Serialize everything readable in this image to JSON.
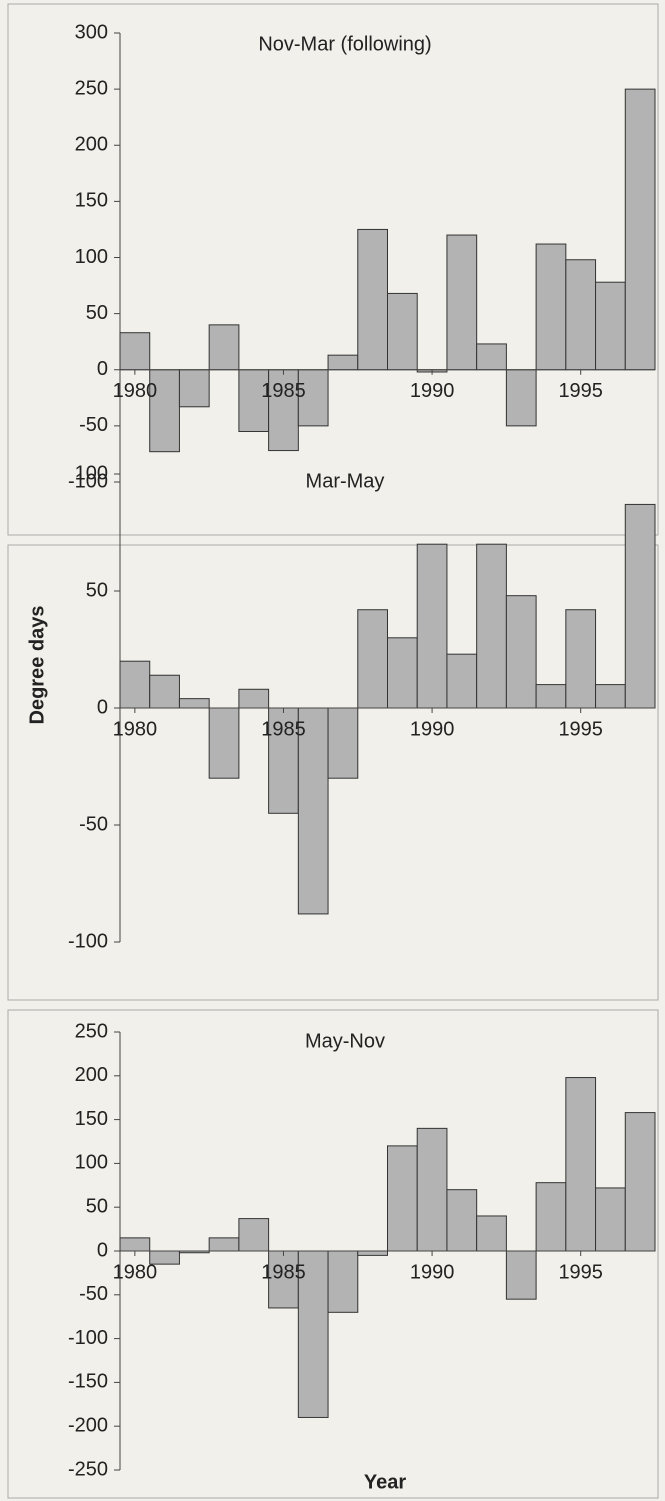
{
  "chart_data": [
    {
      "type": "bar",
      "title": "Nov-Mar (following)",
      "x": [
        1980,
        1981,
        1982,
        1983,
        1984,
        1985,
        1986,
        1987,
        1988,
        1989,
        1990,
        1991,
        1992,
        1993,
        1994,
        1995,
        1996,
        1997
      ],
      "values": [
        33,
        -73,
        -33,
        40,
        -55,
        -72,
        -50,
        13,
        125,
        68,
        -2,
        120,
        23,
        -50,
        112,
        98,
        78,
        250
      ],
      "color": "#b3b3b3",
      "ylim": [
        -100,
        300
      ],
      "yticks": [
        -100,
        -50,
        0,
        50,
        100,
        150,
        200,
        250,
        300
      ],
      "xlim": [
        1979.5,
        1997.5
      ],
      "xticks": [
        1980,
        1985,
        1990,
        1995
      ]
    },
    {
      "type": "bar",
      "title": "Mar-May",
      "ylabel": "Degree days",
      "x": [
        1980,
        1981,
        1982,
        1983,
        1984,
        1985,
        1986,
        1987,
        1988,
        1989,
        1990,
        1991,
        1992,
        1993,
        1994,
        1995,
        1996,
        1997
      ],
      "values": [
        20,
        14,
        4,
        -30,
        8,
        -45,
        -88,
        -30,
        42,
        30,
        70,
        23,
        70,
        48,
        10,
        42,
        10,
        87
      ],
      "color": "#b3b3b3",
      "ylim": [
        -100,
        100
      ],
      "yticks": [
        -100,
        -50,
        0,
        50,
        100
      ],
      "xlim": [
        1979.5,
        1997.5
      ],
      "xticks": [
        1980,
        1985,
        1990,
        1995
      ]
    },
    {
      "type": "bar",
      "title": "May-Nov",
      "xlabel": "Year",
      "x": [
        1980,
        1981,
        1982,
        1983,
        1984,
        1985,
        1986,
        1987,
        1988,
        1989,
        1990,
        1991,
        1992,
        1993,
        1994,
        1995,
        1996,
        1997
      ],
      "values": [
        15,
        -15,
        -2,
        15,
        37,
        -65,
        -190,
        -70,
        -5,
        120,
        140,
        70,
        40,
        -55,
        78,
        198,
        72,
        158
      ],
      "color": "#b3b3b3",
      "ylim": [
        -250,
        250
      ],
      "yticks": [
        -250,
        -200,
        -150,
        -100,
        -50,
        0,
        50,
        100,
        150,
        200,
        250
      ],
      "xlim": [
        1979.5,
        1997.5
      ],
      "xticks": [
        1980,
        1985,
        1990,
        1995
      ]
    }
  ]
}
